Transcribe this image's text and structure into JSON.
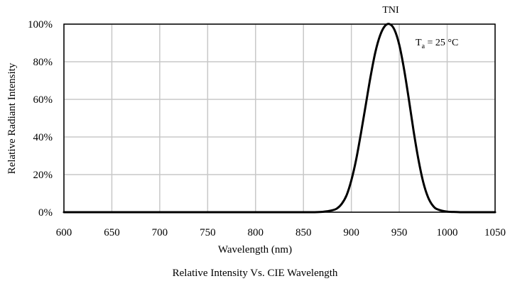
{
  "chart_data": {
    "type": "line",
    "title": "TNI",
    "caption": "Relative Intensity Vs. CIE Wavelength",
    "xlabel": "Wavelength (nm)",
    "ylabel": "Relative Radiant Intensity",
    "xlim": [
      600,
      1050
    ],
    "ylim": [
      0,
      100
    ],
    "x_ticks": [
      600,
      650,
      700,
      750,
      800,
      850,
      900,
      950,
      1000,
      1050
    ],
    "y_ticks": [
      0,
      20,
      40,
      60,
      80,
      100
    ],
    "y_tick_labels": [
      "0%",
      "20%",
      "40%",
      "60%",
      "80%",
      "100%"
    ],
    "grid": true,
    "annotation": {
      "base": "T",
      "subscript": "a",
      "rest": " = 25 °C"
    },
    "series": [
      {
        "color": "#000000",
        "x": [
          600,
          650,
          700,
          750,
          800,
          850,
          860,
          870,
          880,
          885,
          890,
          895,
          900,
          905,
          910,
          915,
          920,
          925,
          930,
          935,
          940,
          945,
          950,
          955,
          960,
          965,
          970,
          975,
          980,
          985,
          990,
          1000,
          1010,
          1020,
          1050
        ],
        "y": [
          0,
          0,
          0,
          0,
          0,
          0,
          0,
          0.2,
          1,
          2,
          4.5,
          9,
          17,
          28,
          42,
          57,
          72,
          85,
          94,
          99,
          100,
          97,
          89,
          76,
          60,
          43,
          28,
          16,
          8,
          3.5,
          1.5,
          0.3,
          0.1,
          0,
          0
        ]
      }
    ]
  }
}
